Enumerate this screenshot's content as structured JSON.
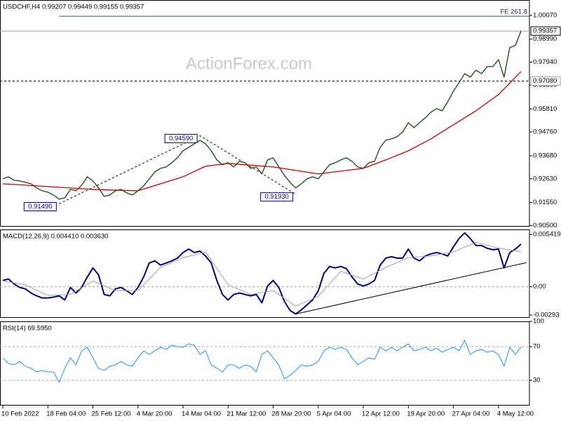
{
  "chart_data": [
    {
      "type": "line",
      "title": "USDCHF,H4 0.99207 0.99449 0.99155 0.99357",
      "watermark": "ActionForex.com",
      "xlim": [
        -0.5,
        93.5
      ],
      "ylim": [
        0.9045,
        1.0077
      ],
      "yticks": [
        {
          "value": 1.0007,
          "label": "1.00070"
        },
        {
          "value": 0.9899,
          "label": "0.98990"
        },
        {
          "value": 0.9794,
          "label": "0.97940"
        },
        {
          "value": 0.9689,
          "label": "0.96890"
        },
        {
          "value": 0.9581,
          "label": "0.95810"
        },
        {
          "value": 0.9476,
          "label": "0.94760"
        },
        {
          "value": 0.9368,
          "label": "0.93680"
        },
        {
          "value": 0.9263,
          "label": "0.92630"
        },
        {
          "value": 0.9155,
          "label": "0.91550"
        },
        {
          "value": 0.905,
          "label": "0.90500"
        }
      ],
      "series": [
        {
          "color": "#114d11",
          "values": [
            0.92626,
            0.92721,
            0.92562,
            0.9253,
            0.92466,
            0.92402,
            0.9221,
            0.92082,
            0.92019,
            0.91891,
            0.91699,
            0.91763,
            0.92146,
            0.92082,
            0.92338,
            0.92721,
            0.9253,
            0.9221,
            0.91827,
            0.91891,
            0.92082,
            0.92146,
            0.91987,
            0.91891,
            0.92082,
            0.92306,
            0.92626,
            0.92945,
            0.93105,
            0.93169,
            0.9336,
            0.93584,
            0.93904,
            0.94063,
            0.94223,
            0.94383,
            0.94223,
            0.93904,
            0.93488,
            0.93265,
            0.9336,
            0.93169,
            0.93424,
            0.9336,
            0.93105,
            0.93169,
            0.92849,
            0.93488,
            0.93584,
            0.93169,
            0.92785,
            0.92466,
            0.9221,
            0.92402,
            0.92626,
            0.92721,
            0.92626,
            0.92945,
            0.93265,
            0.9336,
            0.93488,
            0.93584,
            0.93424,
            0.93169,
            0.93105,
            0.9336,
            0.93424,
            0.94063,
            0.94383,
            0.94447,
            0.94543,
            0.94766,
            0.95182,
            0.94958,
            0.95182,
            0.95405,
            0.95661,
            0.95821,
            0.95725,
            0.9614,
            0.96619,
            0.97003,
            0.97418,
            0.97258,
            0.97578,
            0.97418,
            0.97738,
            0.97738,
            0.98057,
            0.97258,
            0.986,
            0.98696,
            0.99357
          ]
        },
        {
          "color": "#cc0000",
          "x": [
            0,
            8,
            16,
            24,
            32,
            36,
            40,
            48,
            56,
            64,
            68,
            72,
            76,
            80,
            84,
            88,
            92
          ],
          "values": [
            0.92402,
            0.92274,
            0.92146,
            0.92082,
            0.92721,
            0.93201,
            0.93328,
            0.93169,
            0.92849,
            0.93105,
            0.93488,
            0.93904,
            0.94447,
            0.95086,
            0.95725,
            0.9646,
            0.97514
          ]
        }
      ],
      "levels": [
        {
          "value": 1.0003,
          "label": "FE 261.8",
          "from": 10,
          "color": "#1f5f6f"
        },
        {
          "value": 0.99357,
          "label": "0.99357",
          "color": "#a0a0a0",
          "box": "#000000"
        },
        {
          "value": 0.9708,
          "label": "0.97080",
          "color": "#000000",
          "box": "#a0a0a0",
          "dashed": true
        }
      ],
      "annotations": [
        {
          "x": 10,
          "value": 0.9149,
          "label": "0.91490"
        },
        {
          "x": 35,
          "value": 0.9459,
          "label": "0.94590"
        },
        {
          "x": 52,
          "value": 0.9193,
          "label": "0.91930"
        }
      ]
    },
    {
      "type": "line",
      "title": "MACD(12,26,9) 0.004410 0.003630",
      "xlim": [
        -0.5,
        93.5
      ],
      "ylim": [
        -0.00322,
        0.00593
      ],
      "yticks": [
        0.005419,
        {
          "value": 0,
          "label": "0.00"
        },
        -0.00293
      ],
      "levels": [
        {
          "value": 0,
          "color": "#a0a0a0",
          "dashed": true
        }
      ],
      "series": [
        {
          "color": "#000080",
          "width": 2,
          "values": [
            0.00065,
            0.0008,
            0.00029,
            -7e-05,
            -0.00022,
            -0.00065,
            -0.00094,
            -0.00116,
            -0.00116,
            -0.00108,
            -0.00094,
            -0.00137,
            -7e-05,
            -0.00065,
            -7e-05,
            0.00101,
            0.00195,
            0.00123,
            -0.0008,
            -0.00094,
            -0.00022,
            -7e-05,
            -0.00043,
            -0.0008,
            -7e-05,
            0.00101,
            0.00246,
            0.00268,
            0.00224,
            0.00246,
            0.00268,
            0.00296,
            0.00354,
            0.0039,
            0.00354,
            0.00369,
            0.00318,
            0.00246,
            0.00065,
            -0.0008,
            -0.00137,
            -0.0008,
            -0.00065,
            -0.0008,
            -0.00094,
            -0.0008,
            -0.00166,
            7e-05,
            0.00065,
            -7e-05,
            -0.00152,
            -0.00246,
            -0.00282,
            -0.00239,
            -0.00188,
            -0.00137,
            -0.00043,
            0.00137,
            0.0021,
            0.00195,
            0.0021,
            0.00188,
            0.00101,
            0.00029,
            7e-05,
            0.00029,
            0.00065,
            0.00224,
            0.00296,
            0.00311,
            0.00296,
            0.00296,
            0.0039,
            0.00296,
            0.00268,
            0.00318,
            0.0034,
            0.00354,
            0.0034,
            0.00318,
            0.00412,
            0.00499,
            0.00557,
            0.00499,
            0.00427,
            0.00427,
            0.00398,
            0.00383,
            0.0039,
            0.00195,
            0.00354,
            0.0039,
            0.00441
          ]
        },
        {
          "color": "#a0a0a0",
          "width": 1,
          "x": [
            0,
            4,
            8,
            12,
            16,
            20,
            24,
            28,
            32,
            36,
            40,
            44,
            48,
            52,
            56,
            60,
            64,
            68,
            72,
            76,
            80,
            84,
            88,
            92
          ],
          "values": [
            0.0006,
            0.0002,
            -0.0009,
            -0.0008,
            0.0006,
            -0.0004,
            -0.0004,
            0.002,
            0.003,
            0.0036,
            0.0002,
            -0.0008,
            -0.0004,
            -0.002,
            -0.001,
            0.0016,
            0.0008,
            0.002,
            0.003,
            0.0032,
            0.0036,
            0.0046,
            0.004,
            0.00363
          ]
        }
      ],
      "trendline": {
        "x": [
          52,
          93
        ],
        "values": [
          -0.00282,
          0.0025
        ]
      }
    },
    {
      "type": "line",
      "title": "RSI(14) 69.5950",
      "xlim": [
        -0.5,
        93.5
      ],
      "ylim": [
        0,
        100
      ],
      "yticks": [
        100,
        70,
        30
      ],
      "levels": [
        {
          "value": 70,
          "color": "#a0a0a0",
          "dashed": true
        },
        {
          "value": 30,
          "color": "#a0a0a0",
          "dashed": true
        }
      ],
      "series": [
        {
          "color": "#1e90ff",
          "width": 1,
          "values": [
            56.7,
            50.0,
            48.3,
            52.5,
            46.7,
            44.2,
            40.0,
            41.7,
            40.0,
            40.0,
            27.5,
            44.2,
            56.7,
            48.3,
            65.0,
            69.2,
            56.7,
            44.2,
            41.7,
            46.7,
            48.3,
            52.5,
            48.3,
            46.7,
            56.7,
            65.0,
            60.8,
            65.0,
            69.2,
            66.7,
            71.7,
            70.0,
            69.2,
            73.3,
            71.7,
            60.8,
            65.0,
            48.3,
            44.2,
            40.0,
            48.3,
            48.3,
            44.2,
            48.3,
            46.7,
            40.0,
            60.8,
            65.0,
            56.7,
            48.3,
            31.7,
            35.8,
            41.7,
            48.3,
            46.7,
            48.3,
            52.5,
            65.0,
            69.2,
            66.7,
            69.2,
            66.7,
            56.7,
            48.3,
            52.5,
            56.7,
            55.0,
            69.2,
            65.0,
            69.2,
            65.0,
            69.2,
            73.3,
            65.0,
            66.7,
            69.2,
            65.0,
            68.3,
            63.3,
            66.7,
            69.2,
            65.0,
            77.5,
            60.8,
            65.0,
            66.7,
            63.3,
            65.0,
            60.8,
            46.7,
            69.2,
            60.8,
            69.595
          ]
        }
      ],
      "xticks": [
        {
          "value": 0,
          "label": "10 Feb 2022"
        },
        {
          "value": 8,
          "label": "18 Feb 04:00"
        },
        {
          "value": 16,
          "label": "25 Feb 12:00"
        },
        {
          "value": 24,
          "label": "4 Mar 20:00"
        },
        {
          "value": 32,
          "label": "14 Mar 04:00"
        },
        {
          "value": 40,
          "label": "21 Mar 12:00"
        },
        {
          "value": 48,
          "label": "28 Mar 20:00"
        },
        {
          "value": 56,
          "label": "5 Apr 04:00"
        },
        {
          "value": 64,
          "label": "12 Apr 12:00"
        },
        {
          "value": 72,
          "label": "19 Apr 20:00"
        },
        {
          "value": 80,
          "label": "27 Apr 04:00"
        },
        {
          "value": 88,
          "label": "4 May 12:00"
        }
      ]
    }
  ]
}
